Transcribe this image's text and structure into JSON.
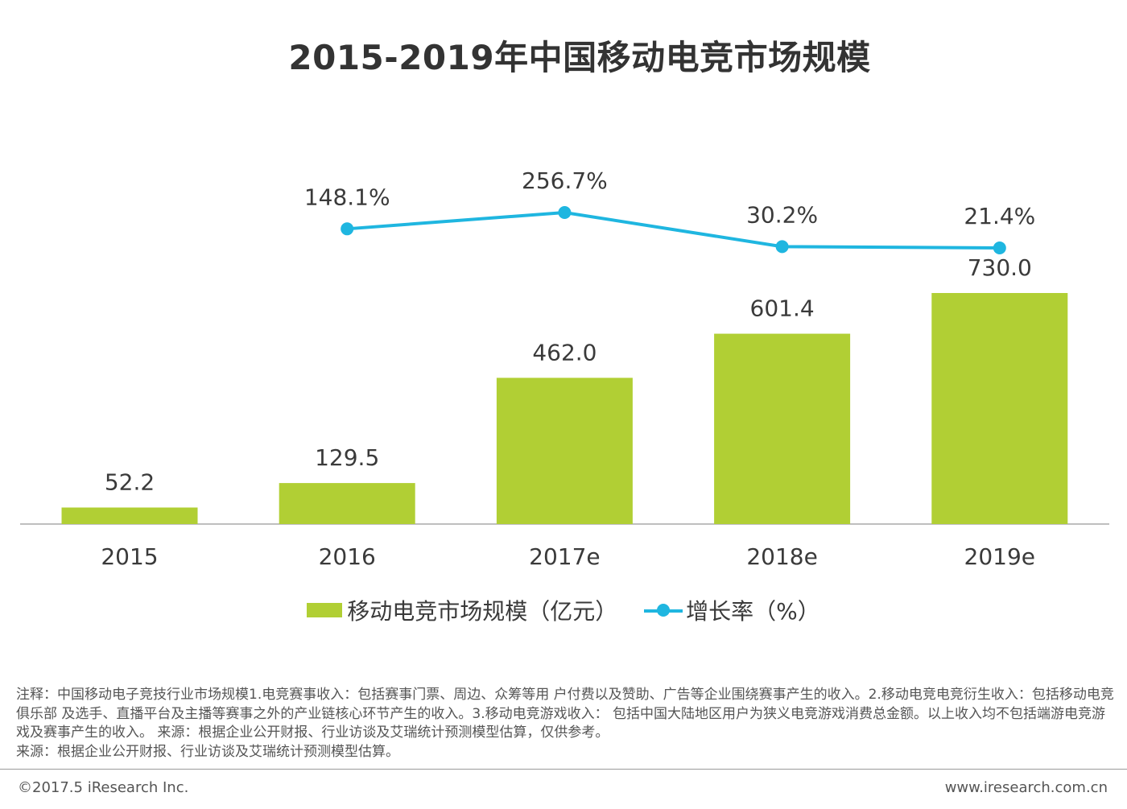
{
  "title": "2015-2019年中国移动电竞市场规模",
  "chart_data": {
    "type": "bar+line",
    "categories": [
      "2015",
      "2016",
      "2017e",
      "2018e",
      "2019e"
    ],
    "series": [
      {
        "name": "移动电竞市场规模（亿元）",
        "type": "bar",
        "values": [
          52.2,
          129.5,
          462.0,
          601.4,
          730.0
        ],
        "labels": [
          "52.2",
          "129.5",
          "462.0",
          "601.4",
          "730.0"
        ],
        "color": "#b1cf34"
      },
      {
        "name": "增长率（%）",
        "type": "line",
        "values": [
          null,
          148.1,
          256.7,
          30.2,
          21.4
        ],
        "labels": [
          "",
          "148.1%",
          "256.7%",
          "30.2%",
          "21.4%"
        ],
        "color": "#1fb6e0"
      }
    ],
    "ylim": [
      0,
      730
    ],
    "grid": false,
    "legend_position": "bottom"
  },
  "legend": {
    "bar_label": "移动电竞市场规模（亿元）",
    "line_label": "增长率（%）"
  },
  "notes": [
    "注释：中国移动电子竞技行业市场规模1.电竞赛事收入：包括赛事门票、周边、众筹等用 户付费以及赞助、广告等企业围绕赛事产生的收入。2.移动电竞电竞衍生收入：包括移动电竞俱乐部 及选手、直播平台及主播等赛事之外的产业链核心环节产生的收入。3.移动电竞游戏收入： 包括中国大陆地区用户为狭义电竞游戏消费总金额。以上收入均不包括端游电竞游戏及赛事产生的收入。 来源：根据企业公开财报、行业访谈及艾瑞统计预测模型估算，仅供参考。",
    "来源：根据企业公开财报、行业访谈及艾瑞统计预测模型估算。"
  ],
  "footer": {
    "copyright": "©2017.5 iResearch Inc.",
    "website": "www.iresearch.com.cn"
  }
}
